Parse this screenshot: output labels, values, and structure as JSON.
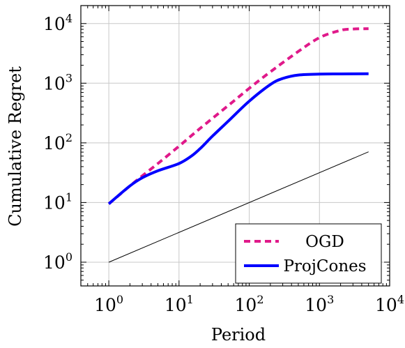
{
  "chart_data": {
    "type": "line",
    "xlabel": "Period",
    "ylabel": "Cumulative Regret",
    "xscale": "log",
    "yscale": "log",
    "xlim": [
      0.4,
      10000
    ],
    "ylim": [
      0.4,
      20000
    ],
    "grid": true,
    "legend_position": "bottom-right",
    "x_ticks": [
      {
        "base": "10",
        "exp": "0",
        "value": 1
      },
      {
        "base": "10",
        "exp": "1",
        "value": 10
      },
      {
        "base": "10",
        "exp": "2",
        "value": 100
      },
      {
        "base": "10",
        "exp": "3",
        "value": 1000
      },
      {
        "base": "10",
        "exp": "4",
        "value": 10000
      }
    ],
    "y_ticks": [
      {
        "base": "10",
        "exp": "0",
        "value": 1
      },
      {
        "base": "10",
        "exp": "1",
        "value": 10
      },
      {
        "base": "10",
        "exp": "2",
        "value": 100
      },
      {
        "base": "10",
        "exp": "3",
        "value": 1000
      },
      {
        "base": "10",
        "exp": "4",
        "value": 10000
      }
    ],
    "series": [
      {
        "name": "OGD",
        "color": "#e0198a",
        "dash": "dashed",
        "points": [
          [
            1,
            9.5
          ],
          [
            2,
            19
          ],
          [
            3,
            28
          ],
          [
            5,
            45
          ],
          [
            10,
            88
          ],
          [
            20,
            175
          ],
          [
            50,
            420
          ],
          [
            100,
            820
          ],
          [
            200,
            1550
          ],
          [
            500,
            3400
          ],
          [
            1000,
            5800
          ],
          [
            2000,
            7700
          ],
          [
            3000,
            8100
          ],
          [
            5000,
            8200
          ]
        ]
      },
      {
        "name": "ProjCones",
        "color": "#0000ff",
        "dash": "solid",
        "points": [
          [
            1,
            9.5
          ],
          [
            2,
            19
          ],
          [
            3,
            26
          ],
          [
            5,
            34
          ],
          [
            10,
            45
          ],
          [
            15,
            60
          ],
          [
            20,
            80
          ],
          [
            30,
            130
          ],
          [
            50,
            230
          ],
          [
            100,
            500
          ],
          [
            200,
            950
          ],
          [
            300,
            1200
          ],
          [
            500,
            1370
          ],
          [
            1000,
            1420
          ],
          [
            2000,
            1430
          ],
          [
            5000,
            1440
          ]
        ]
      },
      {
        "name": "",
        "color": "#000000",
        "dash": "solid",
        "points": [
          [
            1,
            1
          ],
          [
            5000,
            70.7
          ]
        ]
      }
    ]
  }
}
